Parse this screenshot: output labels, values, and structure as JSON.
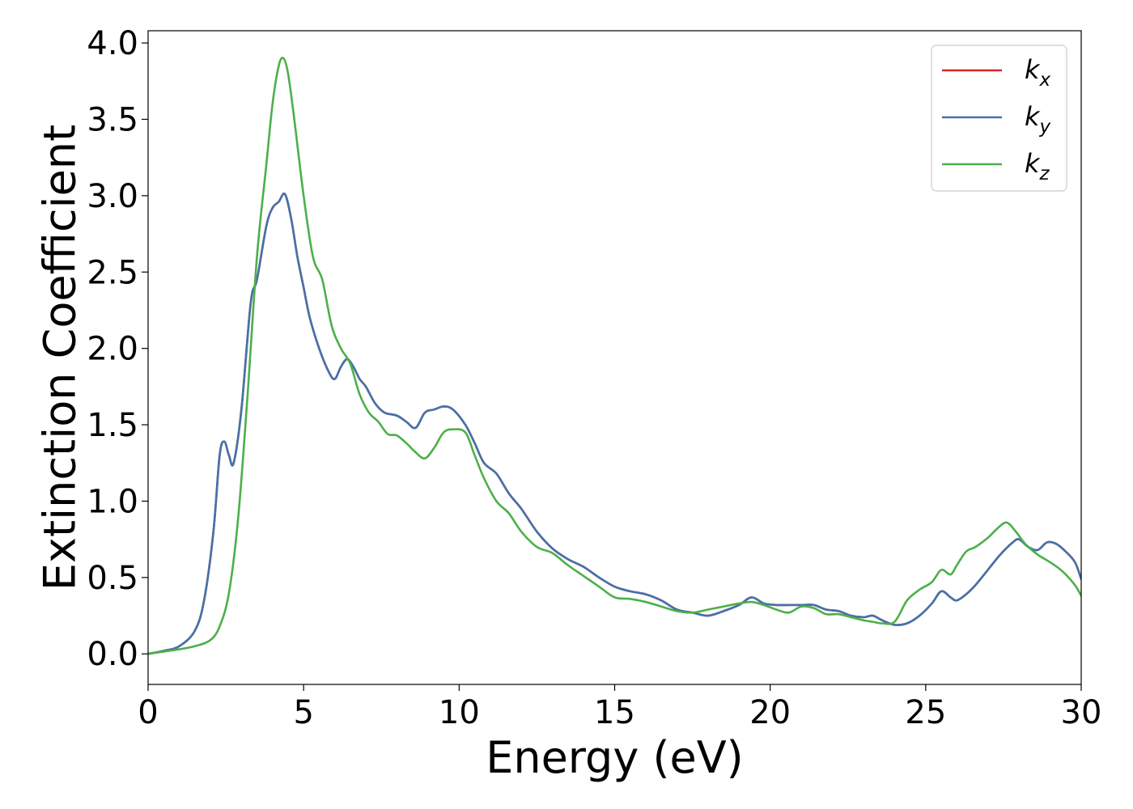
{
  "chart_data": {
    "type": "line",
    "title": "",
    "xlabel": "Energy (eV)",
    "ylabel": "Extinction Coefficient",
    "xlim": [
      0,
      30
    ],
    "ylim": [
      -0.2,
      4.08
    ],
    "xticks": [
      0,
      5,
      10,
      15,
      20,
      25,
      30
    ],
    "xtick_labels": [
      "0",
      "5",
      "10",
      "15",
      "20",
      "25",
      "30"
    ],
    "yticks": [
      0.0,
      0.5,
      1.0,
      1.5,
      2.0,
      2.5,
      3.0,
      3.5,
      4.0
    ],
    "ytick_labels": [
      "0.0",
      "0.5",
      "1.0",
      "1.5",
      "2.0",
      "2.5",
      "3.0",
      "3.5",
      "4.0"
    ],
    "grid": false,
    "legend_position": "top-right",
    "series": [
      {
        "name": "k_x",
        "label_base": "k",
        "label_sub": "x",
        "color": "#d62728",
        "x": [
          0,
          0.5,
          1.0,
          1.5,
          1.8,
          2.1,
          2.3,
          2.45,
          2.6,
          2.75,
          3.0,
          3.3,
          3.5,
          3.8,
          4.0,
          4.2,
          4.4,
          4.6,
          4.8,
          5.0,
          5.2,
          5.5,
          5.8,
          6.0,
          6.2,
          6.4,
          6.6,
          6.8,
          7.0,
          7.3,
          7.6,
          8.0,
          8.3,
          8.6,
          8.9,
          9.2,
          9.5,
          9.8,
          10.2,
          10.5,
          10.8,
          11.2,
          11.6,
          12.0,
          12.5,
          13.0,
          13.5,
          14.0,
          14.5,
          15.0,
          15.5,
          16.0,
          16.5,
          17.0,
          17.5,
          18.0,
          18.5,
          19.0,
          19.4,
          19.8,
          20.2,
          20.6,
          21.0,
          21.4,
          21.8,
          22.2,
          22.6,
          23.0,
          23.3,
          23.6,
          24.0,
          24.4,
          24.8,
          25.2,
          25.5,
          25.8,
          26.0,
          26.3,
          26.6,
          27.0,
          27.4,
          27.8,
          28.0,
          28.3,
          28.6,
          28.9,
          29.2,
          29.5,
          29.8,
          30.0
        ],
        "y": [
          0.0,
          0.02,
          0.05,
          0.15,
          0.35,
          0.8,
          1.3,
          1.39,
          1.3,
          1.25,
          1.6,
          2.3,
          2.45,
          2.8,
          2.92,
          2.96,
          3.01,
          2.85,
          2.6,
          2.4,
          2.2,
          2.0,
          1.85,
          1.8,
          1.88,
          1.93,
          1.88,
          1.8,
          1.75,
          1.64,
          1.58,
          1.56,
          1.52,
          1.48,
          1.58,
          1.6,
          1.62,
          1.6,
          1.5,
          1.38,
          1.25,
          1.18,
          1.05,
          0.95,
          0.8,
          0.69,
          0.62,
          0.57,
          0.5,
          0.44,
          0.41,
          0.39,
          0.35,
          0.29,
          0.27,
          0.25,
          0.28,
          0.32,
          0.37,
          0.33,
          0.32,
          0.32,
          0.32,
          0.32,
          0.29,
          0.28,
          0.25,
          0.24,
          0.25,
          0.22,
          0.19,
          0.2,
          0.25,
          0.33,
          0.41,
          0.37,
          0.35,
          0.39,
          0.45,
          0.55,
          0.65,
          0.73,
          0.75,
          0.7,
          0.68,
          0.73,
          0.72,
          0.67,
          0.6,
          0.49
        ]
      },
      {
        "name": "k_y",
        "label_base": "k",
        "label_sub": "y",
        "color": "#4472aa",
        "x": [
          0,
          0.5,
          1.0,
          1.5,
          1.8,
          2.1,
          2.3,
          2.45,
          2.6,
          2.75,
          3.0,
          3.3,
          3.5,
          3.8,
          4.0,
          4.2,
          4.4,
          4.6,
          4.8,
          5.0,
          5.2,
          5.5,
          5.8,
          6.0,
          6.2,
          6.4,
          6.6,
          6.8,
          7.0,
          7.3,
          7.6,
          8.0,
          8.3,
          8.6,
          8.9,
          9.2,
          9.5,
          9.8,
          10.2,
          10.5,
          10.8,
          11.2,
          11.6,
          12.0,
          12.5,
          13.0,
          13.5,
          14.0,
          14.5,
          15.0,
          15.5,
          16.0,
          16.5,
          17.0,
          17.5,
          18.0,
          18.5,
          19.0,
          19.4,
          19.8,
          20.2,
          20.6,
          21.0,
          21.4,
          21.8,
          22.2,
          22.6,
          23.0,
          23.3,
          23.6,
          24.0,
          24.4,
          24.8,
          25.2,
          25.5,
          25.8,
          26.0,
          26.3,
          26.6,
          27.0,
          27.4,
          27.8,
          28.0,
          28.3,
          28.6,
          28.9,
          29.2,
          29.5,
          29.8,
          30.0
        ],
        "y": [
          0.0,
          0.02,
          0.05,
          0.15,
          0.35,
          0.8,
          1.3,
          1.39,
          1.3,
          1.25,
          1.6,
          2.3,
          2.45,
          2.8,
          2.92,
          2.96,
          3.01,
          2.85,
          2.6,
          2.4,
          2.2,
          2.0,
          1.85,
          1.8,
          1.88,
          1.93,
          1.88,
          1.8,
          1.75,
          1.64,
          1.58,
          1.56,
          1.52,
          1.48,
          1.58,
          1.6,
          1.62,
          1.6,
          1.5,
          1.38,
          1.25,
          1.18,
          1.05,
          0.95,
          0.8,
          0.69,
          0.62,
          0.57,
          0.5,
          0.44,
          0.41,
          0.39,
          0.35,
          0.29,
          0.27,
          0.25,
          0.28,
          0.32,
          0.37,
          0.33,
          0.32,
          0.32,
          0.32,
          0.32,
          0.29,
          0.28,
          0.25,
          0.24,
          0.25,
          0.22,
          0.19,
          0.2,
          0.25,
          0.33,
          0.41,
          0.37,
          0.35,
          0.39,
          0.45,
          0.55,
          0.65,
          0.73,
          0.75,
          0.7,
          0.68,
          0.73,
          0.72,
          0.67,
          0.6,
          0.49
        ]
      },
      {
        "name": "k_z",
        "label_base": "k",
        "label_sub": "z",
        "color": "#4daf4a",
        "x": [
          0,
          0.5,
          1.0,
          1.5,
          2.0,
          2.3,
          2.6,
          2.9,
          3.2,
          3.5,
          3.8,
          4.0,
          4.2,
          4.35,
          4.5,
          4.7,
          5.0,
          5.3,
          5.6,
          5.9,
          6.2,
          6.5,
          6.8,
          7.1,
          7.4,
          7.7,
          8.0,
          8.3,
          8.6,
          8.9,
          9.2,
          9.5,
          9.8,
          10.2,
          10.5,
          10.8,
          11.2,
          11.6,
          12.0,
          12.5,
          13.0,
          13.5,
          14.0,
          14.5,
          15.0,
          15.5,
          16.0,
          16.5,
          17.0,
          17.5,
          18.0,
          18.5,
          19.0,
          19.4,
          19.8,
          20.2,
          20.6,
          21.0,
          21.4,
          21.8,
          22.2,
          22.6,
          23.0,
          23.3,
          23.6,
          24.0,
          24.4,
          24.8,
          25.2,
          25.5,
          25.8,
          26.0,
          26.3,
          26.6,
          27.0,
          27.3,
          27.6,
          27.9,
          28.2,
          28.6,
          29.0,
          29.4,
          29.8,
          30.0
        ],
        "y": [
          0.0,
          0.015,
          0.03,
          0.05,
          0.09,
          0.18,
          0.4,
          0.9,
          1.7,
          2.6,
          3.2,
          3.6,
          3.85,
          3.9,
          3.8,
          3.5,
          3.0,
          2.6,
          2.45,
          2.15,
          2.0,
          1.9,
          1.7,
          1.58,
          1.52,
          1.44,
          1.43,
          1.38,
          1.32,
          1.28,
          1.35,
          1.45,
          1.47,
          1.45,
          1.3,
          1.15,
          1.0,
          0.92,
          0.8,
          0.7,
          0.66,
          0.58,
          0.51,
          0.44,
          0.37,
          0.36,
          0.34,
          0.31,
          0.28,
          0.27,
          0.29,
          0.31,
          0.33,
          0.34,
          0.32,
          0.29,
          0.27,
          0.31,
          0.3,
          0.26,
          0.26,
          0.24,
          0.22,
          0.21,
          0.2,
          0.21,
          0.35,
          0.42,
          0.47,
          0.55,
          0.52,
          0.58,
          0.67,
          0.7,
          0.76,
          0.82,
          0.86,
          0.8,
          0.72,
          0.65,
          0.6,
          0.54,
          0.45,
          0.38
        ]
      }
    ]
  }
}
